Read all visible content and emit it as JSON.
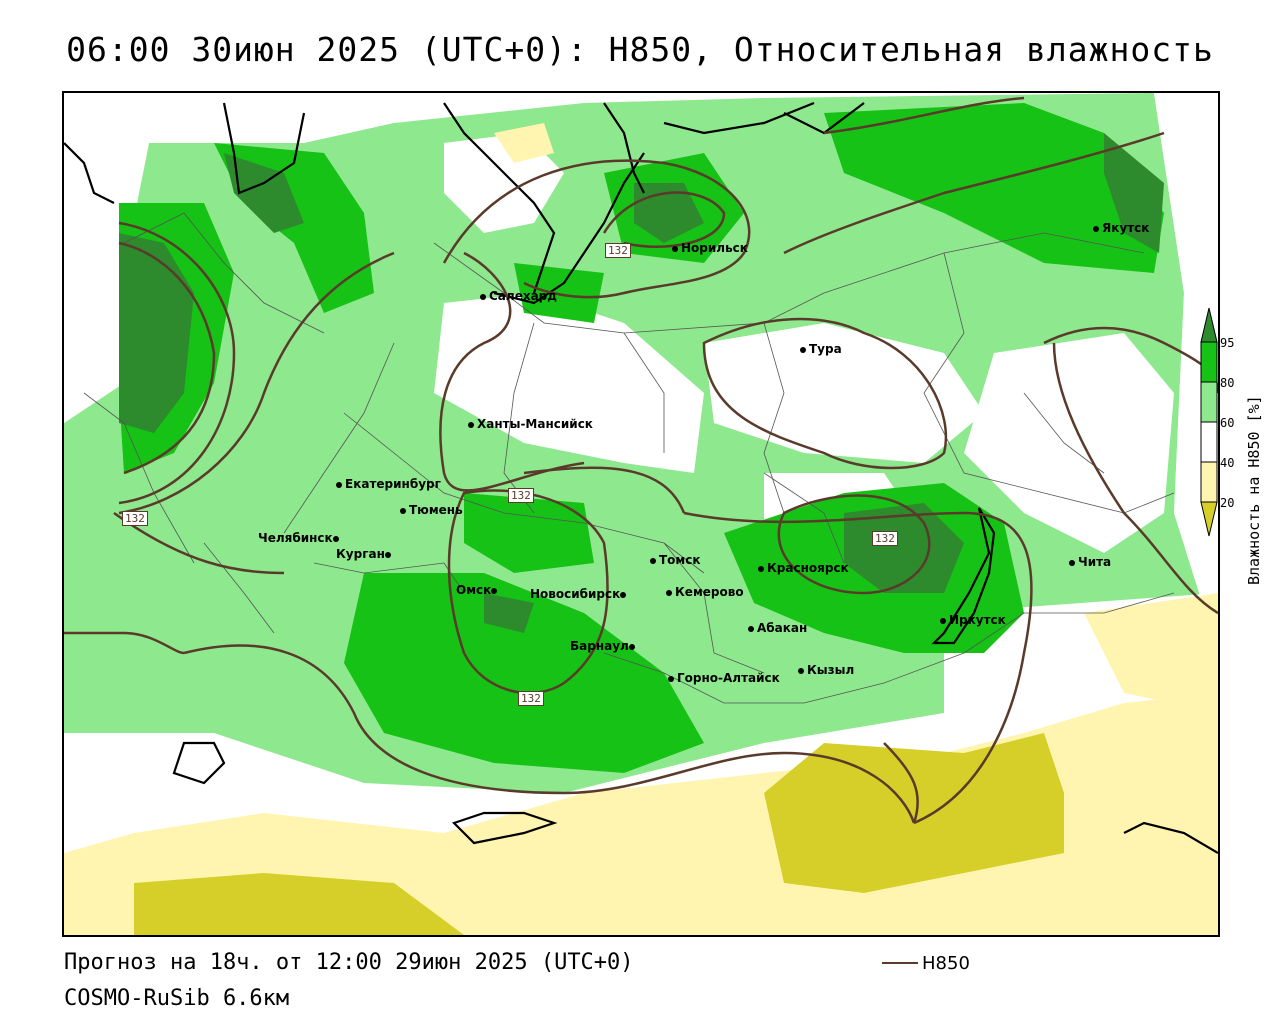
{
  "title": "06:00 30июн 2025 (UTC+0): H850, Относительная влажность",
  "footer": {
    "forecast": "Прогноз на 18ч. от 12:00 29июн 2025 (UTC+0)",
    "model": "COSMO-RuSib 6.6км",
    "line_legend_label": "H850"
  },
  "legend": {
    "title": "Влажность на H850 [%]",
    "ticks": [
      "95",
      "80",
      "60",
      "40",
      "20"
    ],
    "colors": {
      "above95": "#2d8a2d",
      "80_95": "#15c215",
      "60_80": "#8ee88e",
      "40_60": "#ffffff",
      "20_40": "#fff5b0",
      "below20": "#d6cf2a"
    }
  },
  "contour_labels": [
    "132",
    "132",
    "132",
    "132",
    "132"
  ],
  "cities": [
    {
      "name": "Якутск"
    },
    {
      "name": "Норильск"
    },
    {
      "name": "Салехард"
    },
    {
      "name": "Тура"
    },
    {
      "name": "Ханты-Мансийск"
    },
    {
      "name": "Екатеринбург"
    },
    {
      "name": "Тюмень"
    },
    {
      "name": "Челябинск"
    },
    {
      "name": "Курган"
    },
    {
      "name": "Омск"
    },
    {
      "name": "Новосибирск"
    },
    {
      "name": "Томск"
    },
    {
      "name": "Кемерово"
    },
    {
      "name": "Барнаул"
    },
    {
      "name": "Горно-Алтайск"
    },
    {
      "name": "Абакан"
    },
    {
      "name": "Кызыл"
    },
    {
      "name": "Красноярск"
    },
    {
      "name": "Иркутск"
    },
    {
      "name": "Чита"
    }
  ],
  "colors": {
    "contour": "#5a3a2a",
    "dark_green": "#2d8a2d",
    "green": "#15c215",
    "light_green": "#8ee88e",
    "pale_yellow": "#fff5b0",
    "yellow": "#d6cf2a"
  }
}
